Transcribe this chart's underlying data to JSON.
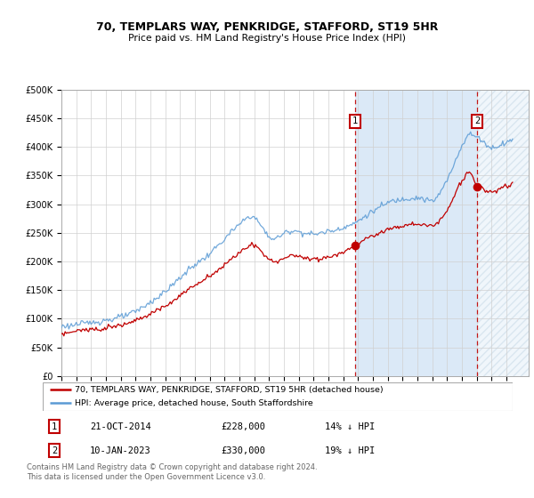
{
  "title1": "70, TEMPLARS WAY, PENKRIDGE, STAFFORD, ST19 5HR",
  "title2": "Price paid vs. HM Land Registry's House Price Index (HPI)",
  "ylim": [
    0,
    500000
  ],
  "yticks": [
    0,
    50000,
    100000,
    150000,
    200000,
    250000,
    300000,
    350000,
    400000,
    450000,
    500000
  ],
  "xlim_start": 1995.0,
  "xlim_end": 2026.5,
  "marker1_date": 2014.81,
  "marker1_price": 228000,
  "marker1_label": "21-OCT-2014",
  "marker1_text": "£228,000",
  "marker1_info": "14% ↓ HPI",
  "marker2_date": 2023.03,
  "marker2_price": 330000,
  "marker2_label": "10-JAN-2023",
  "marker2_text": "£330,000",
  "marker2_info": "19% ↓ HPI",
  "legend1": "70, TEMPLARS WAY, PENKRIDGE, STAFFORD, ST19 5HR (detached house)",
  "legend2": "HPI: Average price, detached house, South Staffordshire",
  "footer": "Contains HM Land Registry data © Crown copyright and database right 2024.\nThis data is licensed under the Open Government Licence v3.0.",
  "hpi_color": "#5b9bd5",
  "price_color": "#c00000",
  "shaded_color": "#dbe9f7",
  "hatch_color": "#b8cfe0",
  "grid_color": "#d0d0d0",
  "bg_color": "#ffffff"
}
